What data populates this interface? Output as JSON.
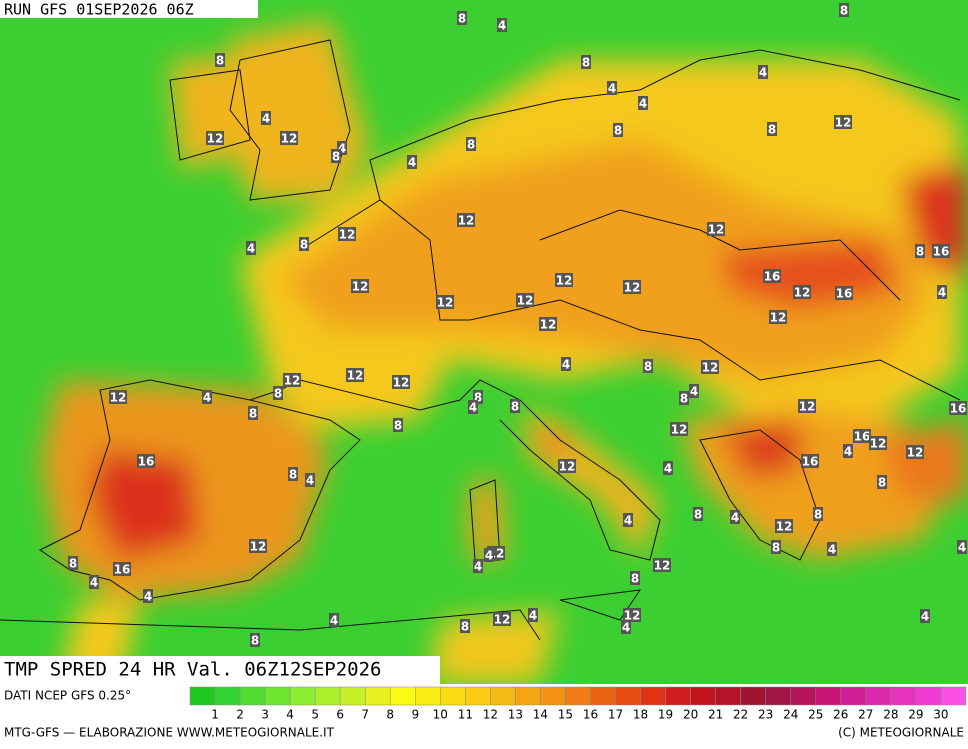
{
  "header": {
    "run": "RUN GFS 01SEP2026 06Z"
  },
  "map": {
    "title": "TMP SPRED 24 HR Val. 06Z12SEP2026",
    "contour_labels": [
      8,
      4,
      8,
      8,
      8,
      4,
      4,
      4,
      4,
      12,
      12,
      8,
      8,
      12,
      4,
      8,
      4,
      8,
      12,
      12,
      12,
      4,
      8,
      8,
      16,
      16,
      12,
      16,
      4,
      12,
      12,
      12,
      12,
      12,
      12,
      12,
      4,
      8,
      12,
      12,
      12,
      12,
      8,
      12,
      4,
      8,
      8,
      4,
      8,
      8,
      4,
      12,
      16,
      8,
      12,
      16,
      12,
      12,
      4,
      16,
      12,
      4,
      16,
      8,
      4,
      8,
      8,
      4,
      4,
      12,
      8,
      12,
      12,
      4,
      8,
      4,
      4,
      8,
      16,
      4,
      12,
      8,
      4,
      4,
      12,
      4,
      4,
      8,
      12,
      4,
      4,
      8
    ]
  },
  "footer": {
    "source": "DATI NCEP GFS 0.25°",
    "credit": "MTG-GFS — ELABORAZIONE WWW.METEOGIORNALE.IT",
    "copyright": "(C) METEOGIORNALE",
    "scale_labels": [
      1,
      2,
      3,
      4,
      5,
      6,
      7,
      8,
      9,
      10,
      11,
      12,
      13,
      14,
      15,
      16,
      17,
      18,
      19,
      20,
      21,
      22,
      23,
      24,
      25,
      26,
      27,
      28,
      29,
      30
    ],
    "scale_colors": [
      "#1ec81e",
      "#32d232",
      "#50dc32",
      "#6ee632",
      "#8cf032",
      "#aaf02d",
      "#c8f028",
      "#e6f01e",
      "#fafa14",
      "#faeb14",
      "#fadc14",
      "#facd14",
      "#f5b914",
      "#f5a514",
      "#f59114",
      "#f07d14",
      "#eb6414",
      "#e64b14",
      "#e13214",
      "#d21e1e",
      "#c3141e",
      "#b41428",
      "#a01432",
      "#a01446",
      "#b4145a",
      "#c81478",
      "#d21e96",
      "#dc28aa",
      "#e632be",
      "#f03cd2",
      "#fa50e6"
    ]
  }
}
